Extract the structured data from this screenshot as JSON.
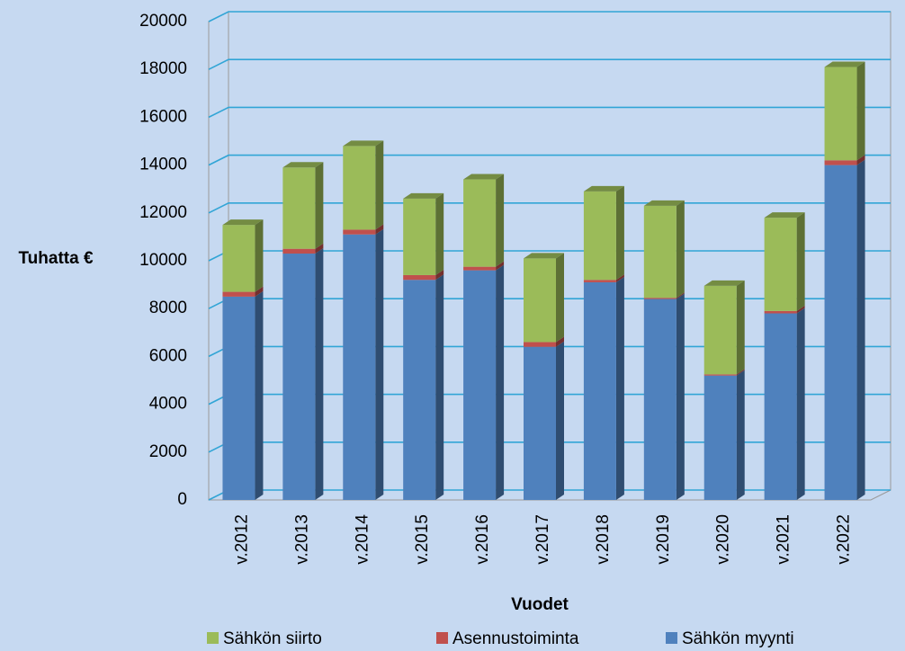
{
  "chart_data": {
    "type": "bar",
    "stacked": true,
    "x_label": "Vuodet",
    "y_label": "Tuhatta €",
    "categories": [
      "v.2012",
      "v.2013",
      "v.2014",
      "v.2015",
      "v.2016",
      "v.2017",
      "v.2018",
      "v.2019",
      "v.2020",
      "v.2021",
      "v.2022"
    ],
    "series": [
      {
        "name": "Sähkön myynti",
        "color": "#4f81bd",
        "values": [
          8500,
          10300,
          11100,
          9200,
          9600,
          6400,
          9100,
          8400,
          5200,
          7800,
          14000
        ]
      },
      {
        "name": "Asennustoiminta",
        "color": "#c0504d",
        "values": [
          200,
          200,
          200,
          200,
          150,
          200,
          100,
          50,
          50,
          100,
          200
        ]
      },
      {
        "name": "Sähkön siirto",
        "color": "#9bbb59",
        "values": [
          2800,
          3400,
          3500,
          3200,
          3650,
          3500,
          3700,
          3850,
          3700,
          3900,
          3900
        ]
      }
    ],
    "ylim": [
      0,
      20000
    ],
    "yticks": [
      0,
      2000,
      4000,
      6000,
      8000,
      10000,
      12000,
      14000,
      16000,
      18000,
      20000
    ],
    "grid": true,
    "legend": "bottom"
  }
}
